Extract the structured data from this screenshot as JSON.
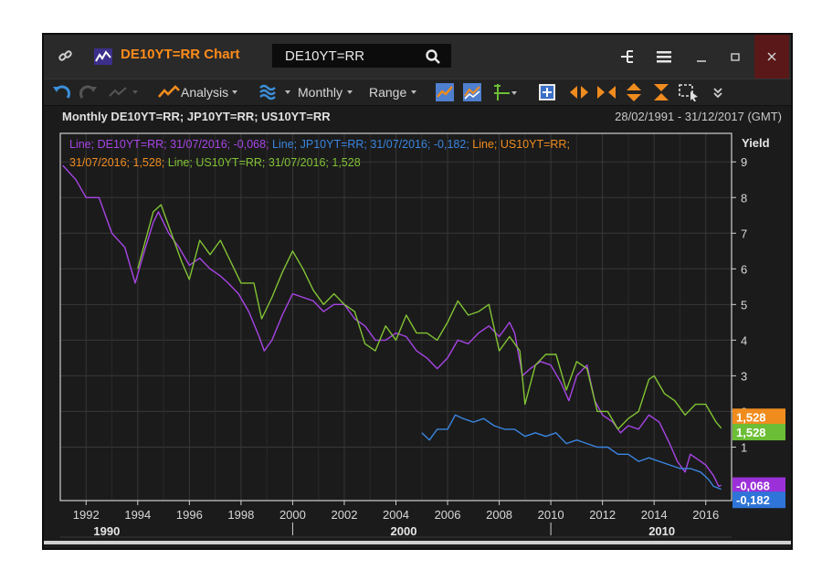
{
  "window": {
    "title": "DE10YT=RR Chart",
    "instrument_input": "DE10YT=RR",
    "icons": [
      "link-icon",
      "chart-logo-icon",
      "search-icon",
      "tree-icon",
      "menu-icon",
      "minimize-icon",
      "maximize-icon",
      "close-icon"
    ]
  },
  "toolbar": {
    "analysis_label": "Analysis",
    "interval_label": "Monthly",
    "range_label": "Range",
    "icons": [
      "undo-icon",
      "redo-icon",
      "line-style-icon",
      "analysis-icon",
      "overlay-icon",
      "line-chart-icon",
      "compare-icon",
      "crosshair-icon",
      "add-icon",
      "scroll-left-icon",
      "zoom-in-icon",
      "zoom-vertical-icon",
      "fit-icon",
      "select-icon",
      "more-icon"
    ]
  },
  "chart_header": {
    "title": "Monthly DE10YT=RR; JP10YT=RR; US10YT=RR",
    "date_range": "28/02/1991 - 31/12/2017 (GMT)"
  },
  "legend": {
    "line1": "Line; DE10YT=RR; 31/07/2016; -0,068; Line; JP10YT=RR; 31/07/2016; -0,182; Line; US10YT=RR;",
    "line2": "31/07/2016; 1,528; Line; US10YT=RR; 31/07/2016; 1,528"
  },
  "colors": {
    "DE": "#a845e6",
    "JP": "#3a86e0",
    "US": "#82c334",
    "US_badge": "#f08c1e",
    "US_badge_green": "#6bbe35",
    "DE_badge": "#9b30d9",
    "JP_badge": "#2f74d8",
    "grid": "#383838",
    "background": "#1b1b1b",
    "accent": "#ff8c1a"
  },
  "chart_data": {
    "type": "line",
    "title": "Monthly DE10YT=RR; JP10YT=RR; US10YT=RR",
    "ylabel": "Yield",
    "xlim": [
      1991.0,
      2017.0
    ],
    "ylim": [
      -0.5,
      9.8
    ],
    "y_ticks": [
      1,
      2,
      3,
      4,
      5,
      6,
      7,
      8,
      9
    ],
    "x_ticks": [
      1992,
      1994,
      1996,
      1998,
      2000,
      2002,
      2004,
      2006,
      2008,
      2010,
      2012,
      2014,
      2016
    ],
    "x_major_labels": [
      {
        "label": "1990",
        "x": 1992.8
      },
      {
        "label": "2000",
        "x": 2004.3
      },
      {
        "label": "2010",
        "x": 2014.3
      }
    ],
    "x_major_separators": [
      2000.0,
      2010.0
    ],
    "grid": true,
    "series": [
      {
        "name": "DE10YT=RR",
        "x": [
          1991.1,
          1991.6,
          1992.0,
          1992.5,
          1993.0,
          1993.5,
          1993.9,
          1994.3,
          1994.6,
          1994.8,
          1995.2,
          1995.6,
          1996.0,
          1996.4,
          1996.8,
          1997.2,
          1997.5,
          1997.9,
          1998.3,
          1998.7,
          1998.9,
          1999.2,
          1999.6,
          2000.0,
          2000.4,
          2000.8,
          2001.2,
          2001.6,
          2002.0,
          2002.4,
          2002.8,
          2003.2,
          2003.6,
          2004.0,
          2004.4,
          2004.8,
          2005.2,
          2005.6,
          2006.0,
          2006.4,
          2006.8,
          2007.2,
          2007.6,
          2008.0,
          2008.4,
          2008.6,
          2008.9,
          2009.2,
          2009.6,
          2010.0,
          2010.4,
          2010.7,
          2011.0,
          2011.4,
          2011.7,
          2012.0,
          2012.4,
          2012.7,
          2013.0,
          2013.4,
          2013.8,
          2014.2,
          2014.6,
          2014.9,
          2015.2,
          2015.4,
          2015.8,
          2016.0,
          2016.3,
          2016.5,
          2016.6
        ],
        "values": [
          8.9,
          8.5,
          8.0,
          8.0,
          7.0,
          6.6,
          5.6,
          6.6,
          7.3,
          7.6,
          7.0,
          6.6,
          6.1,
          6.3,
          6.0,
          5.8,
          5.6,
          5.3,
          4.8,
          4.1,
          3.7,
          4.0,
          4.7,
          5.3,
          5.2,
          5.1,
          4.8,
          5.0,
          5.0,
          4.6,
          4.4,
          4.0,
          4.0,
          4.2,
          4.1,
          3.7,
          3.5,
          3.2,
          3.5,
          4.0,
          3.9,
          4.2,
          4.4,
          4.1,
          4.5,
          4.2,
          3.0,
          3.2,
          3.4,
          3.3,
          2.8,
          2.3,
          3.0,
          3.3,
          2.3,
          1.9,
          1.7,
          1.4,
          1.6,
          1.5,
          1.9,
          1.7,
          1.1,
          0.6,
          0.3,
          0.8,
          0.6,
          0.5,
          0.2,
          -0.1,
          -0.068
        ]
      },
      {
        "name": "JP10YT=RR",
        "x": [
          2005.0,
          2005.3,
          2005.6,
          2006.0,
          2006.3,
          2006.6,
          2007.0,
          2007.4,
          2007.8,
          2008.2,
          2008.6,
          2009.0,
          2009.4,
          2009.8,
          2010.2,
          2010.6,
          2011.0,
          2011.4,
          2011.8,
          2012.2,
          2012.6,
          2013.0,
          2013.4,
          2013.8,
          2014.2,
          2014.6,
          2015.0,
          2015.4,
          2015.8,
          2016.1,
          2016.3,
          2016.6
        ],
        "values": [
          1.4,
          1.2,
          1.5,
          1.5,
          1.9,
          1.8,
          1.7,
          1.8,
          1.6,
          1.5,
          1.5,
          1.3,
          1.4,
          1.3,
          1.4,
          1.1,
          1.2,
          1.1,
          1.0,
          1.0,
          0.8,
          0.8,
          0.6,
          0.7,
          0.6,
          0.5,
          0.4,
          0.4,
          0.3,
          0.1,
          -0.1,
          -0.182
        ]
      },
      {
        "name": "US10YT=RR",
        "x": [
          1994.0,
          1994.6,
          1994.9,
          1995.3,
          1995.7,
          1996.0,
          1996.4,
          1996.8,
          1997.2,
          1997.6,
          1998.0,
          1998.5,
          1998.8,
          1999.2,
          1999.6,
          2000.0,
          2000.4,
          2000.8,
          2001.2,
          2001.6,
          2002.0,
          2002.4,
          2002.8,
          2003.2,
          2003.6,
          2004.0,
          2004.4,
          2004.8,
          2005.2,
          2005.6,
          2006.0,
          2006.4,
          2006.8,
          2007.2,
          2007.6,
          2008.0,
          2008.4,
          2008.8,
          2009.0,
          2009.4,
          2009.8,
          2010.2,
          2010.6,
          2011.0,
          2011.4,
          2011.8,
          2012.2,
          2012.6,
          2013.0,
          2013.4,
          2013.8,
          2014.0,
          2014.4,
          2014.8,
          2015.2,
          2015.6,
          2016.0,
          2016.4,
          2016.6
        ],
        "values": [
          6.0,
          7.6,
          7.8,
          7.0,
          6.2,
          5.7,
          6.8,
          6.4,
          6.8,
          6.2,
          5.6,
          5.6,
          4.6,
          5.2,
          5.9,
          6.5,
          6.0,
          5.4,
          5.0,
          5.3,
          5.0,
          4.8,
          3.9,
          3.7,
          4.4,
          4.0,
          4.7,
          4.2,
          4.2,
          4.0,
          4.5,
          5.1,
          4.7,
          4.8,
          5.0,
          3.7,
          4.1,
          3.7,
          2.2,
          3.3,
          3.6,
          3.6,
          2.6,
          3.4,
          3.2,
          2.0,
          2.0,
          1.5,
          1.8,
          2.0,
          2.9,
          3.0,
          2.5,
          2.3,
          1.9,
          2.2,
          2.2,
          1.7,
          1.528
        ]
      }
    ],
    "badges": [
      {
        "label": "1,528",
        "value": 1.85,
        "color": "#f08c1e",
        "text_color": "#ffffff"
      },
      {
        "label": "1,528",
        "value": 1.42,
        "color": "#6bbe35",
        "text_color": "#ffffff"
      },
      {
        "label": "-0,068",
        "value": -0.08,
        "color": "#9b30d9",
        "text_color": "#ffffff"
      },
      {
        "label": "-0,182",
        "value": -0.48,
        "color": "#2f74d8",
        "text_color": "#ffffff"
      }
    ]
  }
}
